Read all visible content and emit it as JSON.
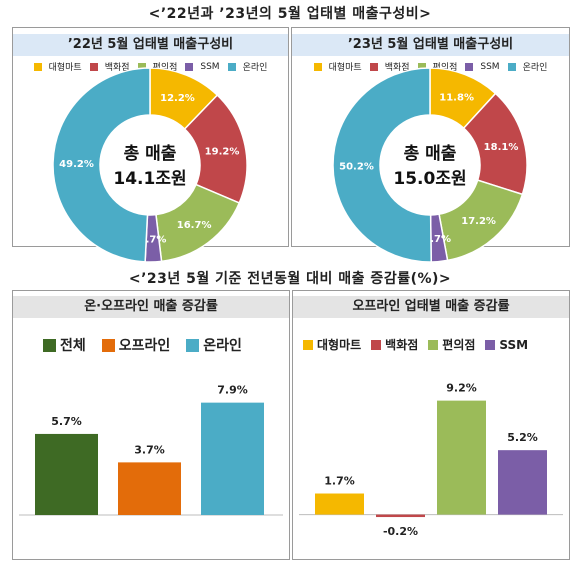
{
  "top_title": "<’22년과 ’23년의 5월 업태별 매출구성비>",
  "bottom_title": "<’23년 5월 기준 전년동월 대비 매출 증감률(%)>",
  "colors": {
    "대형마트": "#f5b800",
    "백화점": "#c0474a",
    "편의점": "#9bbb59",
    "SSM": "#7b5ea7",
    "온라인": "#4bacc6",
    "전체": "#3e6a24",
    "오프라인": "#e36c0a"
  },
  "chart_data": [
    {
      "type": "pie",
      "title": "’22년 5월 업태별 매출구성비",
      "categories": [
        "대형마트",
        "백화점",
        "편의점",
        "SSM",
        "온라인"
      ],
      "values": [
        12.2,
        19.2,
        16.7,
        2.7,
        49.2
      ],
      "labels": [
        "12.2%",
        "19.2%",
        "16.7%",
        "2.7%",
        "49.2%"
      ],
      "center_text": [
        "총 매출",
        "14.1조원"
      ],
      "legend_position": "top"
    },
    {
      "type": "pie",
      "title": "’23년 5월 업태별 매출구성비",
      "categories": [
        "대형마트",
        "백화점",
        "편의점",
        "SSM",
        "온라인"
      ],
      "values": [
        11.8,
        18.1,
        17.2,
        2.7,
        50.2
      ],
      "labels": [
        "11.8%",
        "18.1%",
        "17.2%",
        "2.7%",
        "50.2%"
      ],
      "center_text": [
        "총 매출",
        "15.0조원"
      ],
      "legend_position": "top"
    },
    {
      "type": "bar",
      "title": "온·오프라인 매출 증감률",
      "categories": [
        "전체",
        "오프라인",
        "온라인"
      ],
      "values": [
        5.7,
        3.7,
        7.9
      ],
      "labels": [
        "5.7%",
        "3.7%",
        "7.9%"
      ],
      "ylim": [
        0,
        9.0
      ],
      "grid": false,
      "legend_position": "top"
    },
    {
      "type": "bar",
      "title": "오프라인 업태별 매출 증감률",
      "categories": [
        "대형마트",
        "백화점",
        "편의점",
        "SSM"
      ],
      "values": [
        1.7,
        -0.2,
        9.2,
        5.2
      ],
      "labels": [
        "1.7%",
        "-0.2%",
        "9.2%",
        "5.2%"
      ],
      "ylim": [
        -0.6,
        10.3
      ],
      "grid": false,
      "legend_position": "top"
    }
  ]
}
